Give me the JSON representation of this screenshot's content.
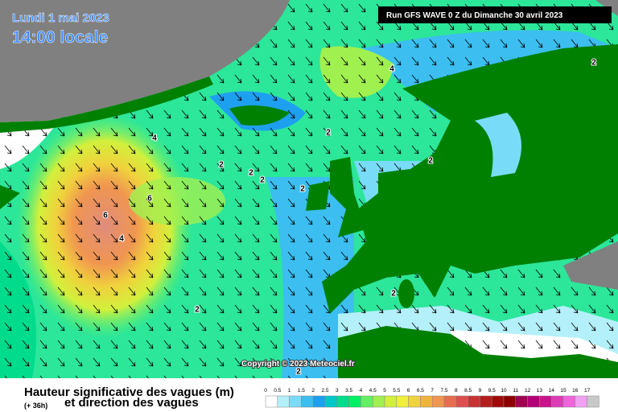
{
  "header": {
    "date": "Lundi 1 mai 2023",
    "time": "14:00 locale",
    "run": "Run GFS WAVE 0 Z du Dimanche 30 avril 2023"
  },
  "copyright": "Copyright © 2023 Meteociel.fr",
  "contours": [
    "4",
    "2",
    "4",
    "2",
    "2",
    "2",
    "2",
    "2",
    "2",
    "6",
    "6",
    "4",
    "2",
    "2",
    "2"
  ],
  "legend": {
    "title": "Hauteur significative des vagues (m)",
    "lead": "(+ 36h)",
    "subtitle": "et direction des vagues",
    "scale": [
      {
        "label": "0",
        "color": "#ffffff"
      },
      {
        "label": "0.5",
        "color": "#b4f0fa"
      },
      {
        "label": "1",
        "color": "#78dcf8"
      },
      {
        "label": "1.5",
        "color": "#3cbef0"
      },
      {
        "label": "2",
        "color": "#1ea0f0"
      },
      {
        "label": "2.5",
        "color": "#00c8c8"
      },
      {
        "label": "3",
        "color": "#00dc8c"
      },
      {
        "label": "3.5",
        "color": "#00f064"
      },
      {
        "label": "4",
        "color": "#64f064"
      },
      {
        "label": "4.5",
        "color": "#a0f050"
      },
      {
        "label": "5",
        "color": "#d2f03c"
      },
      {
        "label": "5.5",
        "color": "#f0f03c"
      },
      {
        "label": "6",
        "color": "#f0d23c"
      },
      {
        "label": "6.5",
        "color": "#f0b43c"
      },
      {
        "label": "7",
        "color": "#f09650"
      },
      {
        "label": "7.5",
        "color": "#e66e50"
      },
      {
        "label": "8",
        "color": "#dc5050"
      },
      {
        "label": "8.5",
        "color": "#c83232"
      },
      {
        "label": "9",
        "color": "#b41e1e"
      },
      {
        "label": "9.5",
        "color": "#a00a0a"
      },
      {
        "label": "10",
        "color": "#8c0000"
      },
      {
        "label": "11",
        "color": "#a00050"
      },
      {
        "label": "12",
        "color": "#b40078"
      },
      {
        "label": "13",
        "color": "#c8148c"
      },
      {
        "label": "14",
        "color": "#dc3cb4"
      },
      {
        "label": "15",
        "color": "#f064dc"
      },
      {
        "label": "16",
        "color": "#f0a0f0"
      },
      {
        "label": "17",
        "color": "#c8c8c8"
      }
    ]
  }
}
